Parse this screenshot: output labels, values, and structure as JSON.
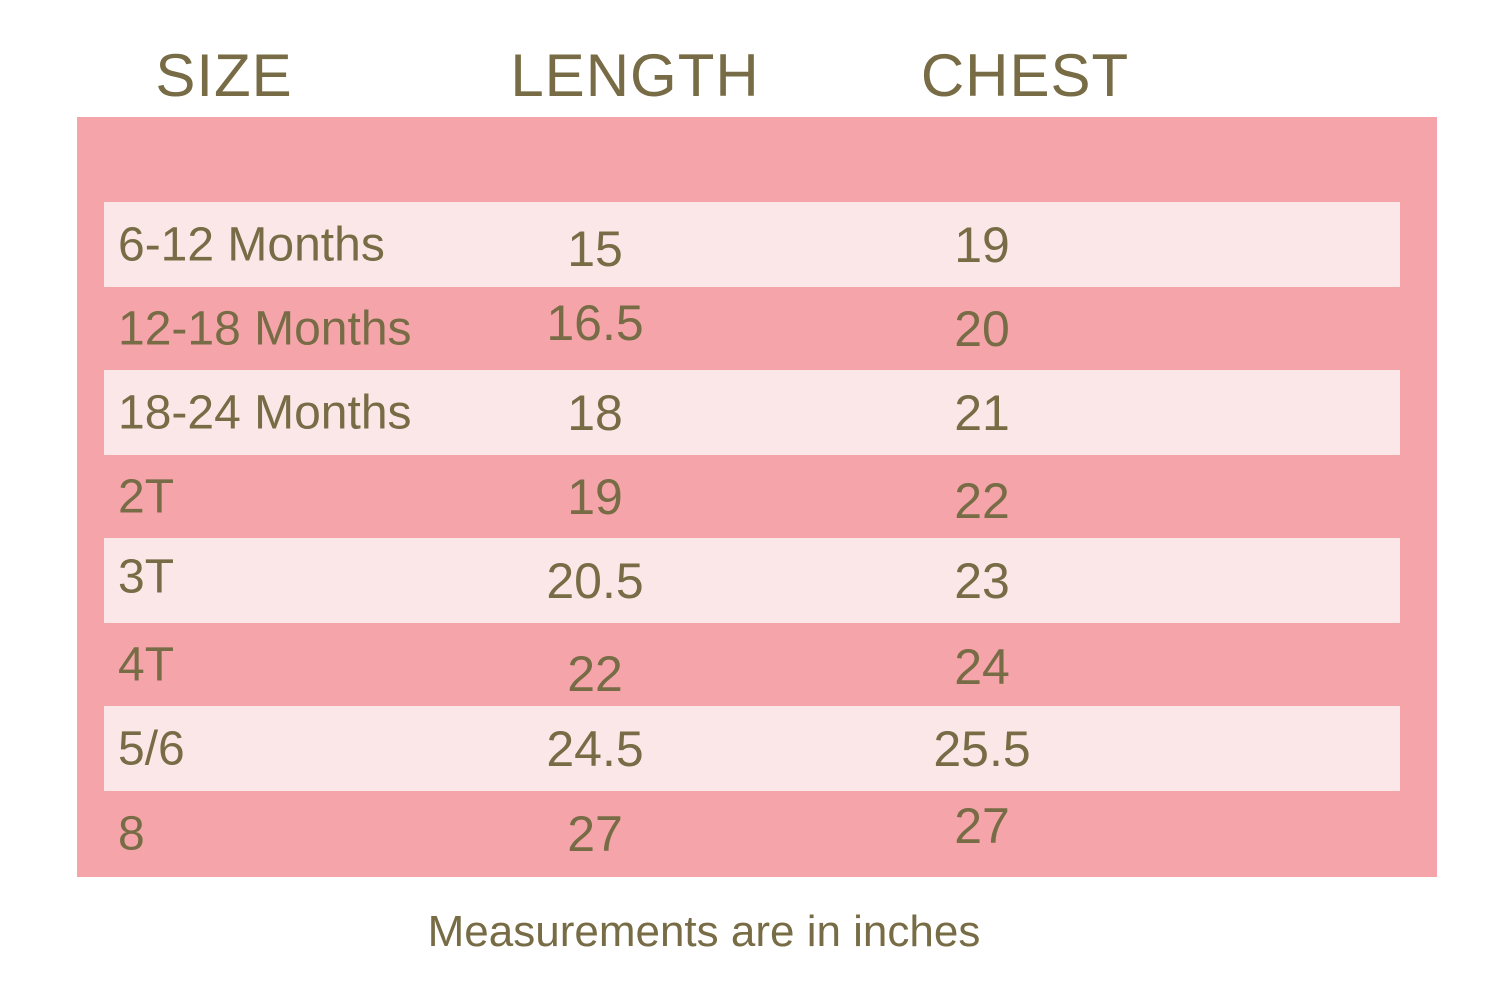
{
  "chart_data": {
    "type": "table",
    "title": "",
    "columns": [
      {
        "label": "SIZE"
      },
      {
        "label": "LENGTH"
      },
      {
        "label": "CHEST"
      }
    ],
    "rows": [
      {
        "size": "6-12 Months",
        "length": "15",
        "chest": "19"
      },
      {
        "size": "12-18 Months",
        "length": "16.5",
        "chest": "20"
      },
      {
        "size": "18-24 Months",
        "length": "18",
        "chest": "21"
      },
      {
        "size": "2T",
        "length": "19",
        "chest": "22"
      },
      {
        "size": "3T",
        "length": "20.5",
        "chest": "23"
      },
      {
        "size": "4T",
        "length": "22",
        "chest": "24"
      },
      {
        "size": "5/6",
        "length": "24.5",
        "chest": "25.5"
      },
      {
        "size": "8",
        "length": "27",
        "chest": "27"
      }
    ],
    "note": "Measurements are in inches",
    "units": "inches",
    "layout": {
      "row_striping": "alternating",
      "legend": "none",
      "grid": "off"
    },
    "colors": {
      "background": "#ffffff",
      "panel_pink": "#f5a5aa",
      "row_light_pink": "#fce7e8",
      "text_olive": "#776c45"
    }
  }
}
